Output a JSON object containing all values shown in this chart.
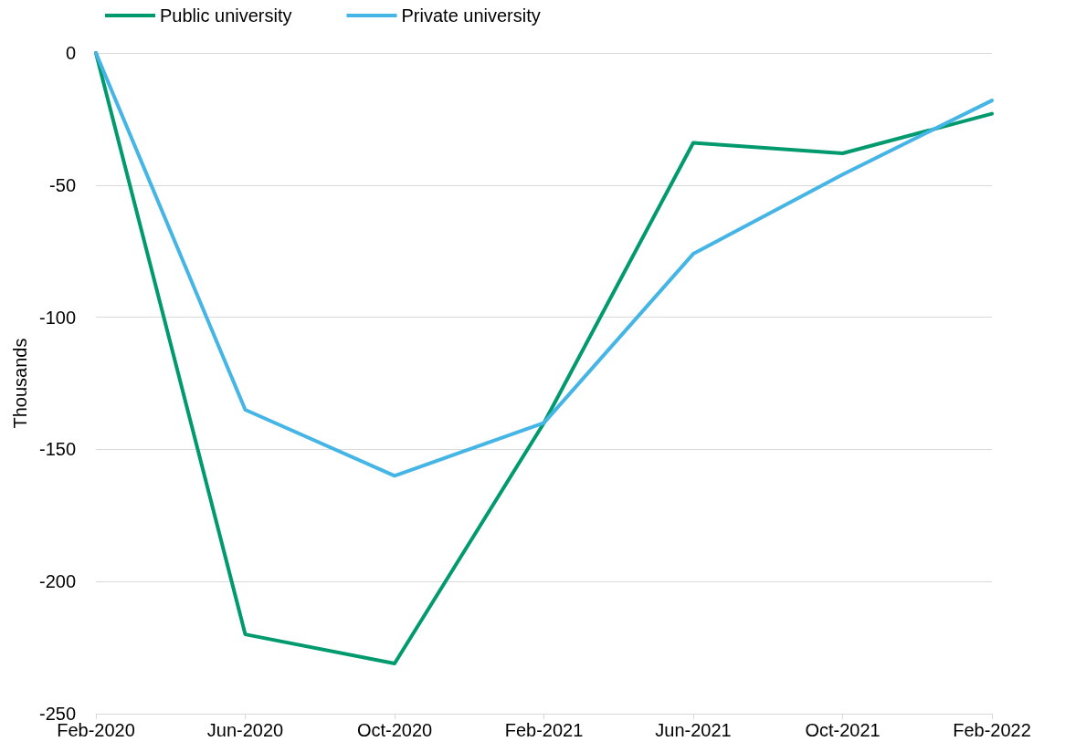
{
  "chart_data": {
    "type": "line",
    "ylabel": "Thousands",
    "categories": [
      "Feb-2020",
      "Jun-2020",
      "Oct-2020",
      "Feb-2021",
      "Jun-2021",
      "Oct-2021",
      "Feb-2022"
    ],
    "series": [
      {
        "name": "Public university",
        "color": "#009a6e",
        "values": [
          0,
          -220,
          -231,
          -140,
          -34,
          -38,
          -23
        ]
      },
      {
        "name": "Private university",
        "color": "#45b5e6",
        "values": [
          0,
          -135,
          -160,
          -140,
          -76,
          -46,
          -18
        ]
      }
    ],
    "ylim": [
      -250,
      0
    ],
    "yticks": [
      -250,
      -200,
      -150,
      -100,
      -50,
      0
    ],
    "grid": "y",
    "legend": "top left",
    "marker": "none",
    "line_style": "solid"
  }
}
